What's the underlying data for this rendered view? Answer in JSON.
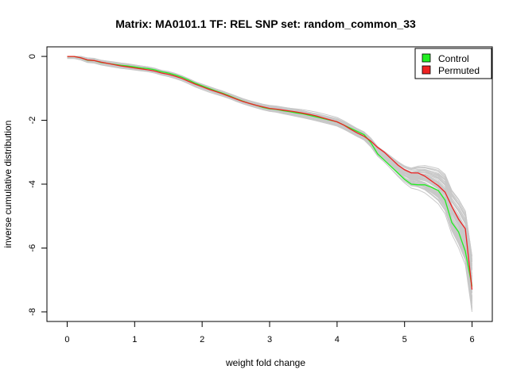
{
  "chart_data": {
    "type": "line",
    "title": "Matrix: MA0101.1 TF: REL SNP set: random_common_33",
    "xlabel": "weight fold change",
    "ylabel": "inverse cumulative distribution",
    "xlim": [
      -0.3,
      6.3
    ],
    "ylim": [
      -8.3,
      0.3
    ],
    "xticks": [
      0,
      1,
      2,
      3,
      4,
      5,
      6
    ],
    "yticks": [
      0,
      -2,
      -4,
      -6,
      -8
    ],
    "grid": false,
    "legend_position": "top-right",
    "legend": [
      {
        "label": "Control",
        "color": "#22ee22"
      },
      {
        "label": "Permuted",
        "color": "#ee2222"
      }
    ],
    "background_series_color": "#c8c8c8",
    "background_series_count": 60,
    "series": [
      {
        "name": "Control",
        "color": "#22ee22",
        "x": [
          0,
          0.1,
          0.2,
          0.3,
          0.4,
          0.5,
          0.6,
          0.7,
          0.8,
          0.9,
          1.0,
          1.1,
          1.2,
          1.3,
          1.4,
          1.5,
          1.6,
          1.7,
          1.8,
          1.9,
          2.0,
          2.1,
          2.2,
          2.3,
          2.4,
          2.5,
          2.6,
          2.7,
          2.8,
          2.9,
          3.0,
          3.1,
          3.2,
          3.3,
          3.4,
          3.5,
          3.6,
          3.7,
          3.8,
          3.9,
          4.0,
          4.1,
          4.2,
          4.3,
          4.4,
          4.5,
          4.6,
          4.7,
          4.8,
          4.9,
          5.0,
          5.1,
          5.2,
          5.3,
          5.4,
          5.5,
          5.6,
          5.7,
          5.8,
          5.9,
          6.0
        ],
        "y": [
          0.0,
          0.0,
          -0.04,
          -0.12,
          -0.13,
          -0.19,
          -0.22,
          -0.25,
          -0.28,
          -0.3,
          -0.33,
          -0.36,
          -0.38,
          -0.42,
          -0.48,
          -0.52,
          -0.58,
          -0.65,
          -0.74,
          -0.84,
          -0.92,
          -1.0,
          -1.08,
          -1.15,
          -1.23,
          -1.32,
          -1.4,
          -1.47,
          -1.53,
          -1.6,
          -1.64,
          -1.66,
          -1.7,
          -1.73,
          -1.77,
          -1.8,
          -1.85,
          -1.9,
          -1.95,
          -2.0,
          -2.05,
          -2.15,
          -2.25,
          -2.35,
          -2.45,
          -2.7,
          -3.05,
          -3.25,
          -3.45,
          -3.65,
          -3.85,
          -4.0,
          -4.02,
          -4.02,
          -4.1,
          -4.2,
          -4.5,
          -5.2,
          -5.5,
          -6.1,
          -7.2
        ]
      },
      {
        "name": "Permuted",
        "color": "#ee2222",
        "x": [
          0,
          0.1,
          0.2,
          0.3,
          0.4,
          0.5,
          0.6,
          0.7,
          0.8,
          0.9,
          1.0,
          1.1,
          1.2,
          1.3,
          1.4,
          1.5,
          1.6,
          1.7,
          1.8,
          1.9,
          2.0,
          2.1,
          2.2,
          2.3,
          2.4,
          2.5,
          2.6,
          2.7,
          2.8,
          2.9,
          3.0,
          3.1,
          3.2,
          3.3,
          3.4,
          3.5,
          3.6,
          3.7,
          3.8,
          3.9,
          4.0,
          4.1,
          4.2,
          4.3,
          4.4,
          4.5,
          4.6,
          4.7,
          4.8,
          4.9,
          5.0,
          5.1,
          5.2,
          5.3,
          5.4,
          5.5,
          5.6,
          5.7,
          5.8,
          5.9,
          6.0
        ],
        "y": [
          0.0,
          0.0,
          -0.04,
          -0.11,
          -0.13,
          -0.18,
          -0.22,
          -0.26,
          -0.3,
          -0.33,
          -0.36,
          -0.39,
          -0.42,
          -0.46,
          -0.52,
          -0.56,
          -0.62,
          -0.69,
          -0.78,
          -0.87,
          -0.95,
          -1.03,
          -1.1,
          -1.17,
          -1.25,
          -1.33,
          -1.41,
          -1.47,
          -1.53,
          -1.58,
          -1.63,
          -1.65,
          -1.68,
          -1.71,
          -1.74,
          -1.78,
          -1.82,
          -1.87,
          -1.93,
          -1.99,
          -2.05,
          -2.15,
          -2.28,
          -2.4,
          -2.5,
          -2.65,
          -2.85,
          -3.0,
          -3.2,
          -3.4,
          -3.55,
          -3.65,
          -3.65,
          -3.75,
          -3.9,
          -4.05,
          -4.25,
          -4.7,
          -5.1,
          -5.4,
          -7.3
        ]
      }
    ]
  }
}
